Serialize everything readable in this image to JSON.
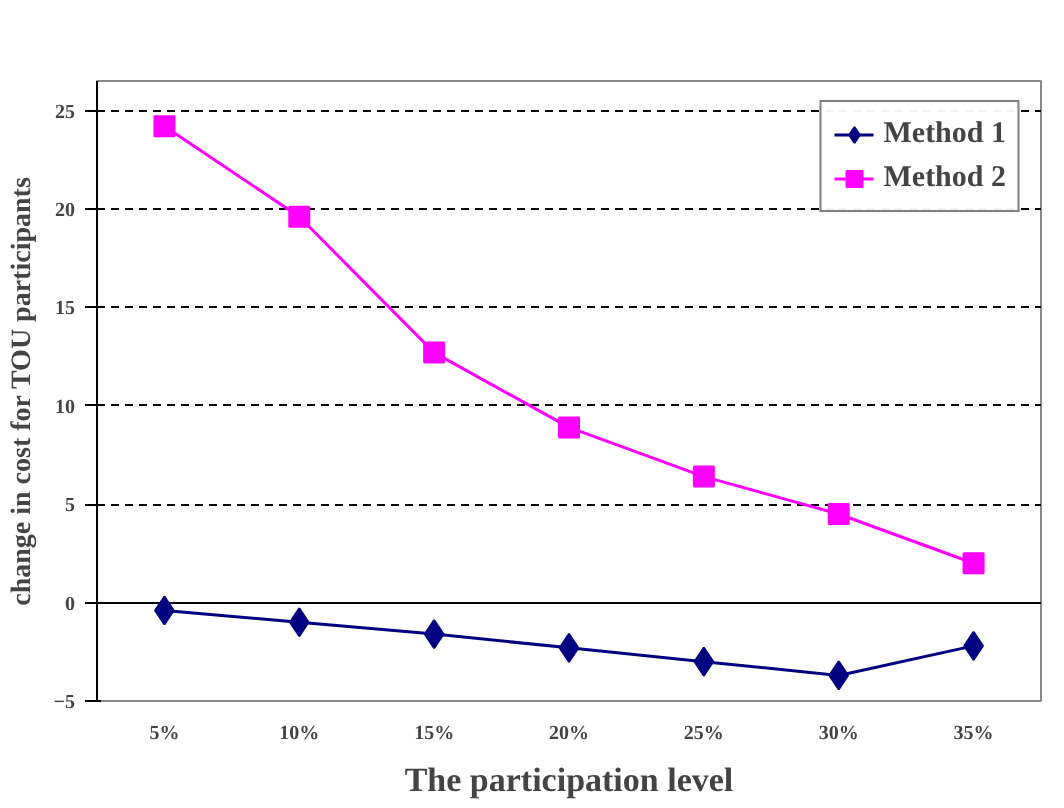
{
  "chart_data": {
    "type": "line",
    "xlabel": "The participation level",
    "ylabel": "change in cost for TOU participants",
    "categories": [
      "5%",
      "10%",
      "15%",
      "20%",
      "25%",
      "30%",
      "35%"
    ],
    "series": [
      {
        "name": "Method 1",
        "color": "#000080",
        "marker": "diamond",
        "values": [
          -0.4,
          -1.0,
          -1.6,
          -2.3,
          -3.0,
          -3.7,
          -2.2
        ]
      },
      {
        "name": "Method 2",
        "color": "#ff00ff",
        "marker": "square",
        "values": [
          24.2,
          19.6,
          12.7,
          8.9,
          6.4,
          4.5,
          2.0
        ]
      }
    ],
    "ylim": [
      -5,
      26.5
    ],
    "yticks": [
      -5,
      0,
      5,
      10,
      15,
      20,
      25
    ],
    "grid": "y",
    "legend": "top right",
    "line_style": "solid"
  }
}
